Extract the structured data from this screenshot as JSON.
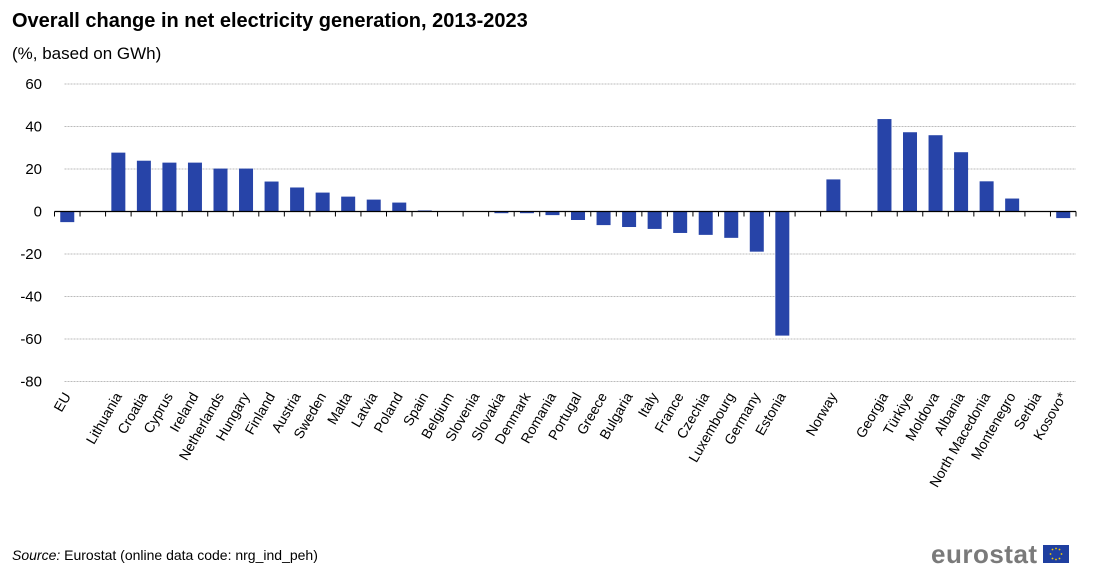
{
  "chart_data": {
    "type": "bar",
    "title": "Overall change in net electricity generation, 2013-2023",
    "subtitle": "(%, based on GWh)",
    "categories": [
      "EU",
      "",
      "Lithuania",
      "Croatia",
      "Cyprus",
      "Ireland",
      "Netherlands",
      "Hungary",
      "Finland",
      "Austria",
      "Sweden",
      "Malta",
      "Latvia",
      "Poland",
      "Spain",
      "Belgium",
      "Slovenia",
      "Slovakia",
      "Denmark",
      "Romania",
      "Portugal",
      "Greece",
      "Bulgaria",
      "Italy",
      "France",
      "Czechia",
      "Luxembourg",
      "Germany",
      "Estonia",
      "",
      "Norway",
      "",
      "Georgia",
      "Türkiye",
      "Moldova",
      "Albania",
      "North Macedonia",
      "Montenegro",
      "Serbia",
      "Kosovo*"
    ],
    "values": [
      -5.0,
      null,
      27.7,
      23.9,
      23.0,
      23.0,
      20.2,
      20.2,
      14.1,
      11.3,
      8.9,
      7.0,
      5.6,
      4.2,
      0.5,
      0,
      0,
      -0.8,
      -0.8,
      -1.7,
      -4.0,
      -6.4,
      -7.3,
      -8.2,
      -10.1,
      -11.0,
      -12.4,
      -18.9,
      -58.4,
      null,
      15.1,
      null,
      43.5,
      37.3,
      35.9,
      27.9,
      14.2,
      6.1,
      0,
      -3.1
    ],
    "ylim": [
      -80,
      60
    ],
    "yticks": [
      60,
      40,
      20,
      0,
      -20,
      -40,
      -60,
      -80
    ],
    "grid": true,
    "legend": "none",
    "bar_color": "#2744a8"
  },
  "footer": {
    "source_label": "Source:",
    "source_text": " Eurostat (online data code: nrg_ind_peh)",
    "logo_text": "eurostat"
  }
}
